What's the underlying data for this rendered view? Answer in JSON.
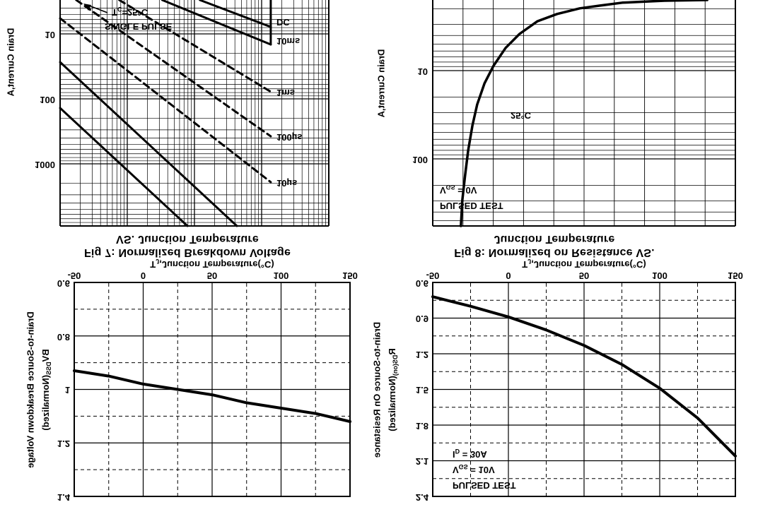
{
  "page": {
    "kind": "datasheet-figures-page",
    "background": "#ffffff",
    "ink": "#000000",
    "flipped_vertically": true
  },
  "chart_data": [
    {
      "id": "fig7",
      "type": "line",
      "title_line1": "Fig 7: Normalized Breakdown Voltage",
      "title_line2": "VS. Junction Temperature",
      "xlabel_rich": [
        {
          "t": "T"
        },
        {
          "t": "J",
          "sub": true
        },
        {
          "t": ",Junction Temperature(°C)"
        }
      ],
      "ylabel_outer": "Drain-to-Source Breakdown Voltage",
      "ylabel_inner_rich": [
        {
          "t": "BV"
        },
        {
          "t": "DSS",
          "sub": true
        },
        {
          "t": "(Normalized)"
        }
      ],
      "xlim": [
        -50,
        150
      ],
      "ylim": [
        0.6,
        1.4
      ],
      "x_tick_labels": [
        "-50",
        "0",
        "50",
        "100",
        "150"
      ],
      "y_tick_labels": [
        "1.4",
        "1.2",
        "1",
        "0.8",
        "0.6"
      ],
      "x": [
        -50,
        -25,
        0,
        25,
        50,
        75,
        100,
        125,
        150
      ],
      "series": [
        {
          "name": "BVDSS(Normalized)",
          "values": [
            0.93,
            0.95,
            0.98,
            1.0,
            1.02,
            1.05,
            1.07,
            1.09,
            1.12
          ]
        }
      ],
      "grid": "solid major, dashed minor",
      "legend": "none"
    },
    {
      "id": "fig8",
      "type": "line",
      "title_line1": "Fig 8: Normalized on Resistance VS.",
      "title_line2": "Junction Temperature",
      "xlabel_rich": [
        {
          "t": "T"
        },
        {
          "t": "J",
          "sub": true
        },
        {
          "t": ",Junction Temperature(°C)"
        }
      ],
      "ylabel_outer": "Drain-to-Source On Resistance",
      "ylabel_inner_rich": [
        {
          "t": "R"
        },
        {
          "t": "DS(on)",
          "sub": true
        },
        {
          "t": "(Normalized)"
        }
      ],
      "xlim": [
        -50,
        150
      ],
      "ylim": [
        0.6,
        2.4
      ],
      "x_tick_labels": [
        "-50",
        "0",
        "50",
        "100",
        "150"
      ],
      "y_tick_labels": [
        "2.4",
        "2.1",
        "1.8",
        "1.5",
        "1.2",
        "0.9",
        "0.6"
      ],
      "x": [
        -50,
        -25,
        0,
        25,
        50,
        75,
        100,
        125,
        150
      ],
      "series": [
        {
          "name": "RDS(on)(Normalized)",
          "values": [
            0.72,
            0.8,
            0.89,
            1.0,
            1.13,
            1.29,
            1.49,
            1.74,
            2.06
          ]
        }
      ],
      "annotations_rich": [
        [
          {
            "t": "PULSED TEST"
          }
        ],
        [
          {
            "t": "V"
          },
          {
            "t": "GS",
            "sub": true
          },
          {
            "t": " = 10V"
          }
        ],
        [
          {
            "t": "I"
          },
          {
            "t": "D",
            "sub": true
          },
          {
            "t": " = 30A"
          }
        ]
      ],
      "grid": "solid major, dashed minor",
      "legend": "none"
    },
    {
      "id": "soa",
      "type": "line",
      "scale": "log-log",
      "clipped": "only upper part of plot visible; x-axis cut off by page edge",
      "ylabel": "Drain Current,A",
      "y_tick_labels": [
        "1000",
        "100",
        "10"
      ],
      "pulse_labels": [
        "10µs",
        "100µs",
        "1ms",
        "10ms",
        "DC"
      ],
      "annotation_single_pulse": "SINGLE PULSE",
      "annotation_tc_rich": [
        {
          "t": "T"
        },
        {
          "t": "C",
          "sub": true
        },
        {
          "t": "=25°C"
        }
      ],
      "segments": [
        {
          "name": "limit-line-a",
          "style": "solid",
          "from": [
            0.0,
            0.725
          ],
          "to": [
            0.658,
            0.0
          ]
        },
        {
          "name": "limit-line-b",
          "style": "solid",
          "from": [
            0.0,
            0.522
          ],
          "to": [
            0.474,
            0.0
          ]
        },
        {
          "name": "10us-line",
          "style": "dashed",
          "from": [
            0.0,
            0.919
          ],
          "to": [
            0.784,
            0.194
          ]
        },
        {
          "name": "100us-line",
          "style": "dashed",
          "from": [
            0.06,
            1.0
          ],
          "to": [
            0.784,
            0.397
          ]
        },
        {
          "name": "1ms-line",
          "style": "dashed",
          "from": [
            0.22,
            1.0
          ],
          "to": [
            0.784,
            0.594
          ]
        },
        {
          "name": "10ms-line",
          "style": "solid",
          "from": [
            0.38,
            1.0
          ],
          "to": [
            0.784,
            0.803
          ]
        },
        {
          "name": "dc-line",
          "style": "solid",
          "from": [
            0.52,
            1.0
          ],
          "to": [
            0.784,
            0.881
          ]
        },
        {
          "name": "vdss-limit",
          "style": "solid",
          "from": [
            0.784,
            0.803
          ],
          "to": [
            0.784,
            1.05
          ]
        }
      ]
    },
    {
      "id": "pulsed_test",
      "type": "line",
      "scale": "log-y",
      "clipped": "only upper part of plot visible; x-axis cut off by page edge",
      "ylabel": "Drain Current,A",
      "y_tick_labels": [
        "100",
        "10"
      ],
      "annotations_rich": [
        [
          {
            "t": "PULSED TEST"
          }
        ],
        [
          {
            "t": "V"
          },
          {
            "t": "GS",
            "sub": true
          },
          {
            "t": " = 0V"
          }
        ],
        [
          {
            "t": "25°C"
          }
        ]
      ],
      "curve_frac": [
        [
          0.093,
          0.0
        ],
        [
          0.098,
          0.116
        ],
        [
          0.107,
          0.225
        ],
        [
          0.117,
          0.334
        ],
        [
          0.131,
          0.444
        ],
        [
          0.147,
          0.538
        ],
        [
          0.171,
          0.631
        ],
        [
          0.201,
          0.709
        ],
        [
          0.241,
          0.788
        ],
        [
          0.287,
          0.85
        ],
        [
          0.346,
          0.906
        ],
        [
          0.411,
          0.938
        ],
        [
          0.486,
          0.963
        ],
        [
          0.551,
          0.975
        ],
        [
          0.626,
          0.988
        ],
        [
          0.766,
          0.997
        ],
        [
          0.907,
          1.0
        ]
      ]
    }
  ]
}
